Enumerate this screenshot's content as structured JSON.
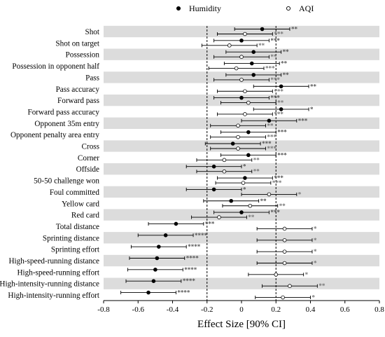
{
  "chart_data": {
    "type": "scatter",
    "xlabel": "Effect Size [90% CI]",
    "xlim": [
      -0.8,
      0.8
    ],
    "xticks": [
      "-0.8",
      "-0.6",
      "-0.4",
      "-0.2",
      "0",
      "0.2",
      "0.4",
      "0.6",
      "0.8"
    ],
    "reference_lines": [
      -0.2,
      0.2
    ],
    "legend": {
      "position": "top",
      "entries": [
        {
          "name": "Humidity",
          "marker": "filled-circle"
        },
        {
          "name": "AQI",
          "marker": "open-circle"
        }
      ]
    },
    "categories": [
      "Shot",
      "Shot on target",
      "Possession",
      "Possession in opponent half",
      "Pass",
      "Pass accuracy",
      "Forward pass",
      "Forward pass accuracy",
      "Opponent 35m entry",
      "Opponent penalty area entry",
      "Cross",
      "Corner",
      "Offside",
      "50-50 challenge won",
      "Foul committed",
      "Yellow card",
      "Red card",
      "Total distance",
      "Sprinting distance",
      "Sprinting effort",
      "High-speed-running distance",
      "High-speed-running effort",
      "High-intensity-running distance",
      "High-intensity-running effort"
    ],
    "series": [
      {
        "name": "Humidity",
        "values": [
          0.12,
          0.0,
          0.07,
          0.06,
          0.07,
          0.23,
          0.0,
          0.23,
          0.16,
          0.04,
          -0.05,
          0.04,
          -0.16,
          0.02,
          -0.16,
          -0.06,
          0.0,
          -0.38,
          -0.44,
          -0.48,
          -0.49,
          -0.5,
          -0.51,
          -0.54
        ],
        "ci_low": [
          -0.04,
          -0.16,
          -0.09,
          -0.1,
          -0.09,
          0.07,
          -0.16,
          0.07,
          0.0,
          -0.12,
          -0.21,
          -0.12,
          -0.32,
          -0.14,
          -0.32,
          -0.22,
          -0.16,
          -0.54,
          -0.6,
          -0.64,
          -0.65,
          -0.66,
          -0.67,
          -0.7
        ],
        "ci_high": [
          0.28,
          0.16,
          0.23,
          0.22,
          0.23,
          0.39,
          0.16,
          0.39,
          0.32,
          0.2,
          0.11,
          0.2,
          0.0,
          0.18,
          0.0,
          0.1,
          0.16,
          -0.22,
          -0.28,
          -0.32,
          -0.33,
          -0.34,
          -0.35,
          -0.38
        ],
        "significance": [
          "**",
          "***",
          "**",
          "**",
          "**",
          "**",
          "***",
          "*",
          "***",
          "***",
          "***",
          "***",
          "*",
          "***",
          "*",
          "**",
          "***",
          "***",
          "****",
          "****",
          "****",
          "****",
          "****",
          "****"
        ]
      },
      {
        "name": "AQI",
        "values": [
          0.02,
          -0.07,
          0.0,
          -0.03,
          0.0,
          0.02,
          0.04,
          0.02,
          -0.02,
          -0.02,
          -0.02,
          -0.1,
          -0.1,
          0.01,
          0.16,
          0.05,
          -0.13,
          0.25,
          0.25,
          0.25,
          0.25,
          0.2,
          0.28,
          0.24
        ],
        "ci_low": [
          -0.14,
          -0.23,
          -0.16,
          -0.19,
          -0.16,
          -0.14,
          -0.12,
          -0.14,
          -0.18,
          -0.18,
          -0.18,
          -0.26,
          -0.26,
          -0.15,
          0.0,
          -0.11,
          -0.29,
          0.09,
          0.09,
          0.09,
          0.09,
          0.04,
          0.12,
          0.08
        ],
        "ci_high": [
          0.18,
          0.09,
          0.16,
          0.13,
          0.16,
          0.18,
          0.2,
          0.18,
          0.14,
          0.14,
          0.14,
          0.06,
          0.06,
          0.17,
          0.32,
          0.21,
          0.03,
          0.41,
          0.41,
          0.41,
          0.41,
          0.36,
          0.44,
          0.4
        ],
        "significance": [
          "***",
          "**",
          "**",
          "***",
          "***",
          "***",
          "**",
          "***",
          "**",
          "***",
          "***",
          "**",
          "**",
          "***",
          "*",
          "**",
          "**",
          "*",
          "*",
          "*",
          "*",
          "*",
          "**",
          "*"
        ]
      }
    ],
    "colors": {
      "humidity_marker": "#000000",
      "aqi_marker": "#ffffff",
      "band": "#dcdcdc",
      "significance_humidity": "#555555",
      "significance_aqi": "#777777"
    }
  }
}
